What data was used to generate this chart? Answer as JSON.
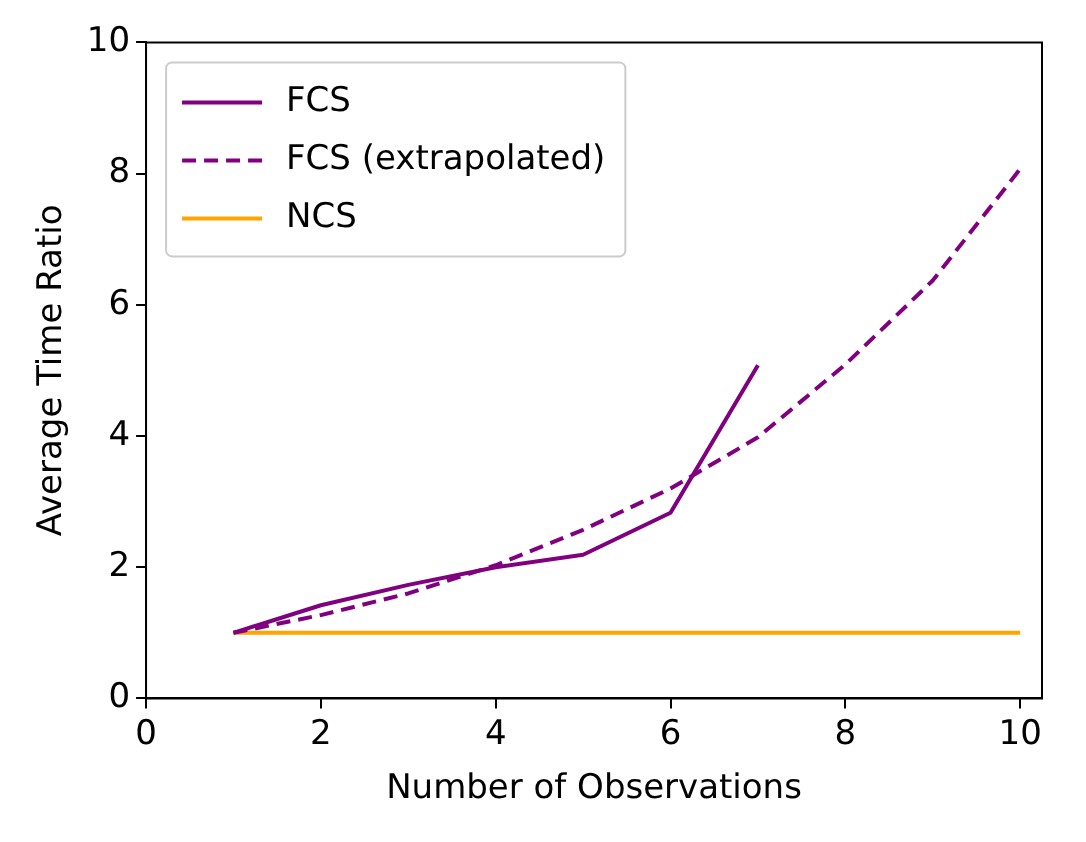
{
  "chart_data": {
    "type": "line",
    "xlabel": "Number of Observations",
    "ylabel": "Average Time Ratio",
    "xlim": [
      0,
      10.25
    ],
    "xticks": [
      0,
      2,
      4,
      6,
      8,
      10
    ],
    "ylim": [
      0,
      10
    ],
    "yticks": [
      0,
      2,
      4,
      6,
      8,
      10
    ],
    "grid": false,
    "legend": "top left",
    "marker": "none",
    "series": [
      {
        "name": "FCS",
        "color": "#800080",
        "line_style": "solid",
        "x": [
          1,
          2,
          3,
          4,
          5,
          6,
          7
        ],
        "values": [
          1.0,
          1.42,
          1.73,
          2.0,
          2.19,
          2.83,
          5.08
        ]
      },
      {
        "name": "FCS (extrapolated)",
        "color": "#800080",
        "line_style": "dashed",
        "x": [
          1,
          2,
          3,
          4,
          5,
          6,
          7,
          8,
          9,
          10
        ],
        "values": [
          1.0,
          1.27,
          1.6,
          2.03,
          2.57,
          3.2,
          3.98,
          5.09,
          6.37,
          8.07
        ]
      },
      {
        "name": "NCS",
        "color": "#ffa500",
        "line_style": "solid",
        "x": [
          1,
          2,
          3,
          4,
          5,
          6,
          7,
          8,
          9,
          10
        ],
        "values": [
          1,
          1,
          1,
          1,
          1,
          1,
          1,
          1,
          1,
          1
        ]
      }
    ]
  }
}
